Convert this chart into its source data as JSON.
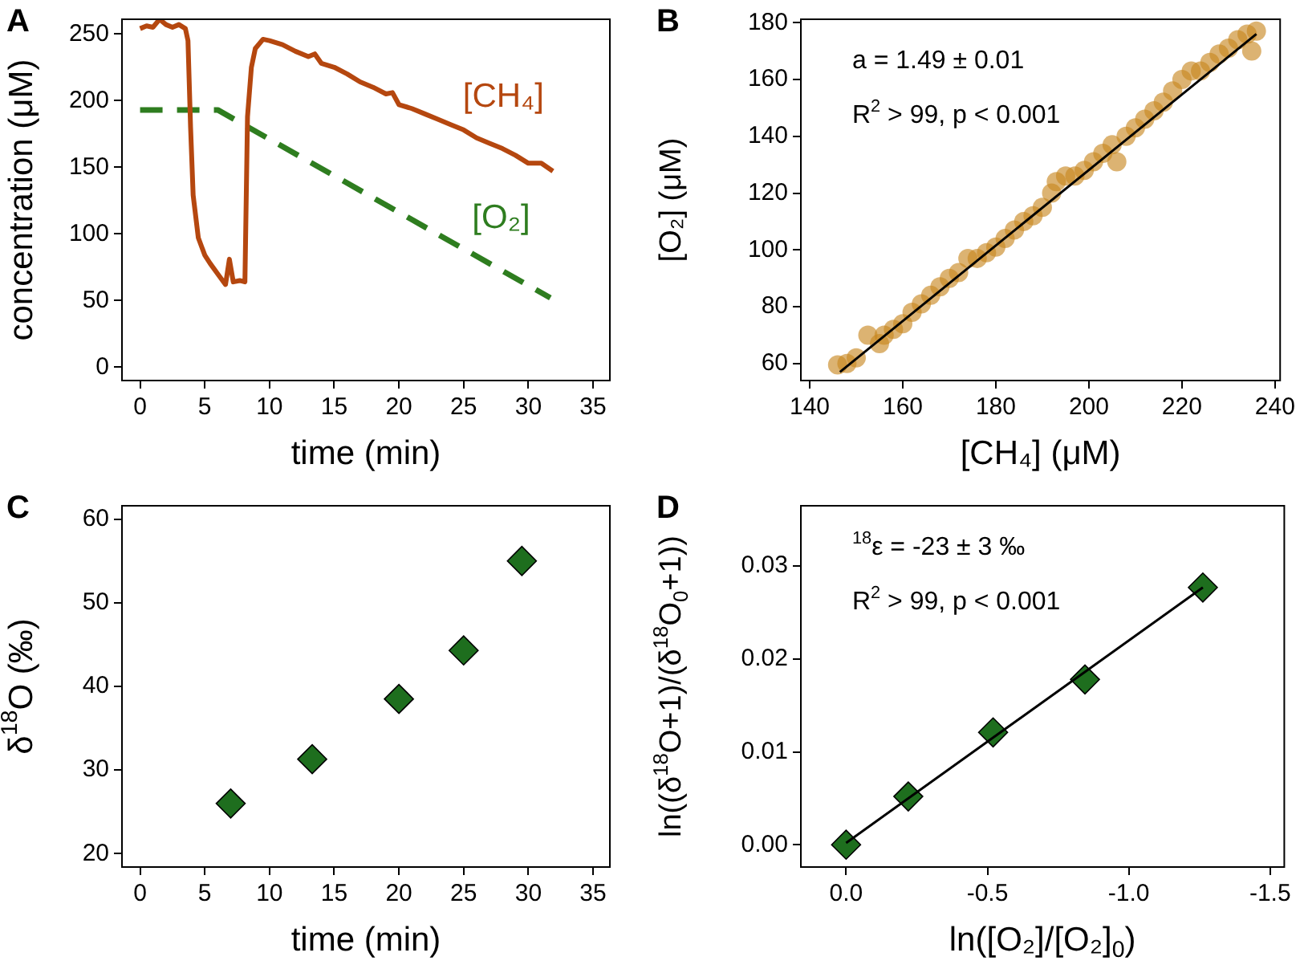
{
  "chart_data": [
    {
      "type": "line",
      "title": "A",
      "xlabel": "time (min)",
      "ylabel": "concentration (μM)",
      "xlim": [
        -1.4,
        36.3
      ],
      "ylim": [
        -10,
        261
      ],
      "xticks": [
        0,
        5,
        10,
        15,
        20,
        25,
        30,
        35
      ],
      "yticks": [
        0,
        50,
        100,
        150,
        200,
        250
      ],
      "marker": "none",
      "series": [
        {
          "name": "[CH₄]",
          "color": "#b5470f",
          "line_style": "solid",
          "x": [
            0,
            0.5,
            1,
            1.5,
            2,
            2.5,
            3,
            3.5,
            3.7,
            3.9,
            4.1,
            4.5,
            5,
            5.4,
            6,
            6.6,
            6.9,
            7.2,
            7.7,
            8.1,
            8.3,
            8.6,
            8.9,
            9.5,
            10,
            11,
            12,
            13,
            13.5,
            14,
            15,
            16,
            17,
            18,
            19,
            19.5,
            20,
            21,
            22,
            23,
            24,
            25,
            26,
            27,
            28,
            29,
            30,
            31,
            31.9
          ],
          "values": [
            254,
            256,
            255,
            261,
            257,
            255,
            257,
            254,
            245,
            180,
            129,
            97,
            84,
            78,
            70,
            62,
            81,
            64,
            65,
            64,
            188,
            225,
            239,
            246,
            245,
            242,
            237,
            233,
            235,
            228,
            225,
            220,
            214,
            210,
            205,
            206,
            197,
            194,
            190,
            186,
            182,
            178,
            172,
            168,
            164,
            159,
            153,
            153,
            147
          ]
        },
        {
          "name": "[O₂]",
          "color": "#2e7d1f",
          "line_style": "dashed",
          "x": [
            0,
            6,
            31.7
          ],
          "values": [
            193,
            193,
            52
          ]
        }
      ]
    },
    {
      "type": "scatter",
      "title": "B",
      "xlabel": "[CH₄] (μM)",
      "ylabel": "[O₂] (μM)",
      "xlim": [
        138.1,
        241.1
      ],
      "ylim": [
        54,
        181.2
      ],
      "xticks": [
        140,
        160,
        180,
        200,
        220,
        240
      ],
      "yticks": [
        60,
        80,
        100,
        120,
        140,
        160,
        180
      ],
      "marker": "circle",
      "annotations": [
        "a = 1.49 ± 0.01",
        "R$^{2}$ > 99, p < 0.001"
      ],
      "series": [
        {
          "color": "#c8861e",
          "x": [
            146,
            148,
            150,
            152.5,
            155,
            156,
            158,
            160,
            162,
            164,
            166,
            168,
            170,
            172,
            174,
            176,
            178,
            180,
            182,
            184,
            186,
            188,
            190,
            192,
            193,
            195,
            197,
            199,
            201,
            203,
            205,
            206,
            208,
            210,
            212,
            214,
            216,
            218,
            220,
            222,
            224,
            226,
            228,
            230,
            232,
            234,
            235,
            236
          ],
          "values": [
            59.5,
            60,
            62,
            70,
            67,
            70,
            72,
            74,
            78,
            81,
            84,
            87,
            90,
            92,
            97,
            97,
            99,
            101,
            104,
            107,
            110,
            112,
            115,
            120,
            124,
            126,
            126,
            128,
            131,
            134,
            137,
            131,
            140,
            143,
            146,
            149,
            152,
            156,
            160,
            163,
            163,
            166,
            169,
            171,
            174,
            176,
            170,
            177
          ]
        },
        {
          "type": "line",
          "color": "#000000",
          "marker": "none",
          "line_style": "solid",
          "x": [
            146.5,
            236
          ],
          "values": [
            57,
            176
          ]
        }
      ]
    },
    {
      "type": "scatter",
      "title": "C",
      "xlabel": "time (min)",
      "ylabel": "δ$^{18}$O (‰)",
      "xlim": [
        -1.4,
        36.3
      ],
      "ylim": [
        18.4,
        61.6
      ],
      "xticks": [
        0,
        5,
        10,
        15,
        20,
        25,
        30,
        35
      ],
      "yticks": [
        20,
        30,
        40,
        50,
        60
      ],
      "marker": "diamond",
      "series": [
        {
          "color": "#1e6e1e",
          "x": [
            7,
            13.3,
            20,
            25,
            29.5
          ],
          "values": [
            26,
            31.3,
            38.5,
            44.3,
            55
          ]
        }
      ]
    },
    {
      "type": "scatter",
      "title": "D",
      "xlabel": "ln([O₂]/[O₂]$_{0}$)",
      "ylabel": "ln((δ$^{18}$O+1)/(δ$^{18}$O$_{0}$+1))",
      "xlim": [
        0.16,
        -1.55
      ],
      "ylim": [
        -0.0024,
        0.0365
      ],
      "xticks": [
        {
          "value": 0,
          "label": "0.0"
        },
        {
          "value": -0.5,
          "label": "-0.5"
        },
        {
          "value": -1,
          "label": "-1.0"
        },
        {
          "value": -1.5,
          "label": "-1.5"
        }
      ],
      "yticks": [
        {
          "value": 0,
          "label": "0.00"
        },
        {
          "value": 0.01,
          "label": "0.01"
        },
        {
          "value": 0.02,
          "label": "0.02"
        },
        {
          "value": 0.03,
          "label": "0.03"
        }
      ],
      "marker": "diamond",
      "annotations": [
        "$^{18}$ε = -23 ± 3 ‰",
        "R$^{2}$ > 99, p < 0.001"
      ],
      "series": [
        {
          "type": "line",
          "color": "#000000",
          "marker": "none",
          "line_style": "solid",
          "x": [
            0,
            -1.262
          ],
          "values": [
            0.0002,
            0.0277
          ]
        },
        {
          "color": "#1e6e1e",
          "x": [
            0,
            -0.22,
            -0.52,
            -0.845,
            -1.262
          ],
          "values": [
            0,
            0.0052,
            0.0121,
            0.0178,
            0.0277
          ]
        }
      ]
    }
  ]
}
